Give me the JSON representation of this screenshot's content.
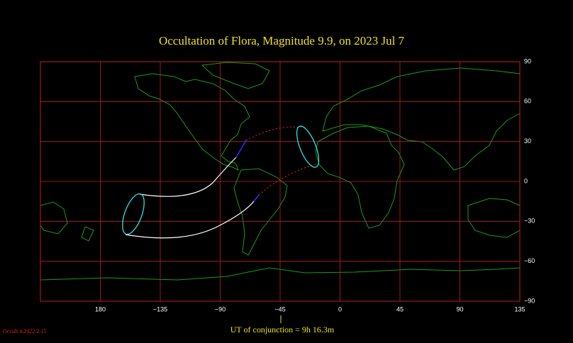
{
  "map": {
    "title": "Occultation  of  Flora,      Magnitude 9.9,   on  2023 Jul  7",
    "xlim": [
      135,
      495
    ],
    "xticks": [
      180,
      {
        "value": 225,
        "label": "−135"
      },
      {
        "value": 270,
        "label": "−90"
      },
      {
        "value": 315,
        "label": "−45"
      },
      {
        "value": 360,
        "label": "0"
      },
      {
        "value": 405,
        "label": "45"
      },
      {
        "value": 450,
        "label": "90"
      },
      {
        "value": 495,
        "label": "135"
      }
    ],
    "ylim": [
      -90,
      90
    ],
    "yticks": [
      90,
      60,
      30,
      0,
      {
        "value": -30,
        "label": "−30"
      },
      {
        "value": -60,
        "label": "−60"
      },
      {
        "value": -90,
        "label": "−90"
      }
    ],
    "conjunction": "UT of conjunction =  9h 16.3m",
    "version": "Occult 4.2022.2.15"
  }
}
